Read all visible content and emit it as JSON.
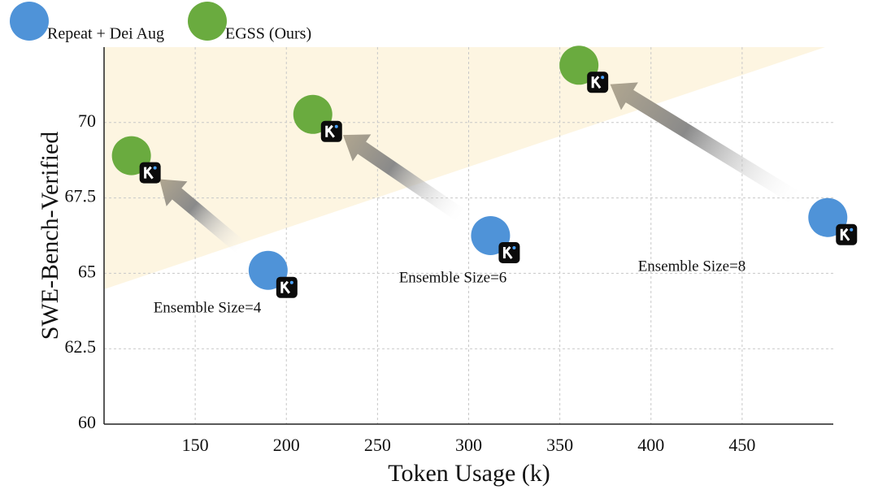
{
  "chart_data": {
    "type": "scatter",
    "x_label": "Token Usage (k)",
    "y_label": "SWE-Bench-Verified",
    "xlim": [
      100,
      500
    ],
    "ylim": [
      60,
      72.5
    ],
    "xticks": [
      150,
      200,
      250,
      300,
      350,
      400,
      450
    ],
    "yticks": [
      60,
      62.5,
      65,
      67.5,
      70
    ],
    "grid": true,
    "legend_position": "top-left",
    "series": [
      {
        "name": "Repeat + Dei Aug",
        "color": "#4f93d8",
        "x": [
          190,
          312,
          497
        ],
        "y": [
          65.1,
          66.25,
          66.85
        ]
      },
      {
        "name": "EGSS (Ours)",
        "color": "#6aab3f",
        "x": [
          115,
          214.5,
          360.5
        ],
        "y": [
          68.9,
          70.27,
          71.9
        ]
      }
    ],
    "annotations": [
      "Ensemble Size=4",
      "Ensemble Size=6",
      "Ensemble Size=8"
    ]
  }
}
